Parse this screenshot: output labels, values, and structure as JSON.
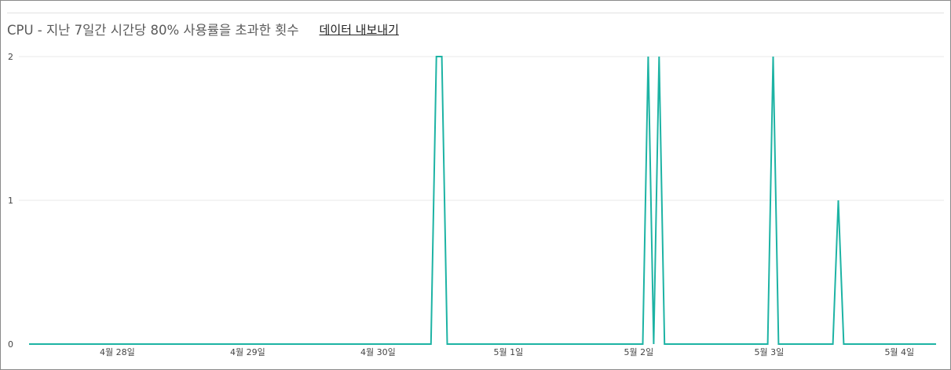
{
  "header": {
    "title": "CPU - 지난 7일간 시간당 80% 사용률을 초과한 횟수",
    "export_label": "데이터 내보내기"
  },
  "chart_data": {
    "type": "line",
    "title": "CPU - 지난 7일간 시간당 80% 사용률을 초과한 횟수",
    "xlabel": "",
    "ylabel": "",
    "x_unit": "hours from start",
    "ylim": [
      0,
      2
    ],
    "yticks": [
      "0",
      "1",
      "2"
    ],
    "xticks": [
      {
        "label": "4월 28일",
        "x": 16.25
      },
      {
        "label": "4월 29일",
        "x": 40.25
      },
      {
        "label": "4월 30일",
        "x": 64.25
      },
      {
        "label": "5월 1일",
        "x": 88.25
      },
      {
        "label": "5월 2일",
        "x": 112.25
      },
      {
        "label": "5월 3일",
        "x": 136.25
      },
      {
        "label": "5월 4일",
        "x": 160.25
      }
    ],
    "xlim": [
      0,
      167
    ],
    "grid": true,
    "colors": {
      "line": "#1db3a4",
      "grid": "#e8e8e8"
    },
    "series": [
      {
        "points": [
          [
            0,
            0
          ],
          [
            74,
            0
          ],
          [
            75,
            2
          ],
          [
            76,
            2
          ],
          [
            77,
            0
          ],
          [
            113,
            0
          ],
          [
            114,
            2
          ],
          [
            115,
            0
          ],
          [
            116,
            2
          ],
          [
            117,
            0
          ],
          [
            136,
            0
          ],
          [
            137,
            2
          ],
          [
            138,
            0
          ],
          [
            148,
            0
          ],
          [
            149,
            1
          ],
          [
            150,
            0
          ],
          [
            167,
            0
          ]
        ]
      }
    ]
  }
}
